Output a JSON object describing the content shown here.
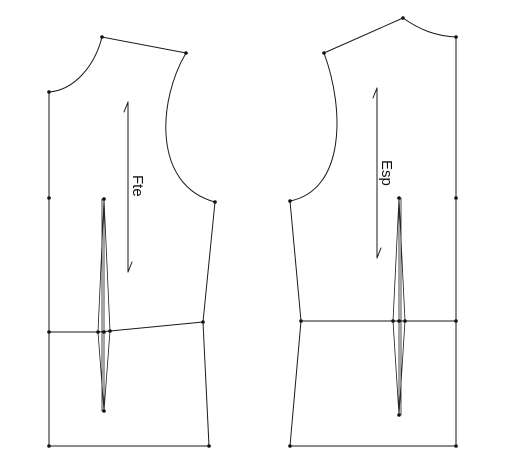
{
  "pattern": {
    "front": {
      "label": "Fte"
    },
    "back": {
      "label": "Esp"
    },
    "colors": {
      "stroke": "#1a1a1a",
      "background": "#ffffff"
    }
  }
}
